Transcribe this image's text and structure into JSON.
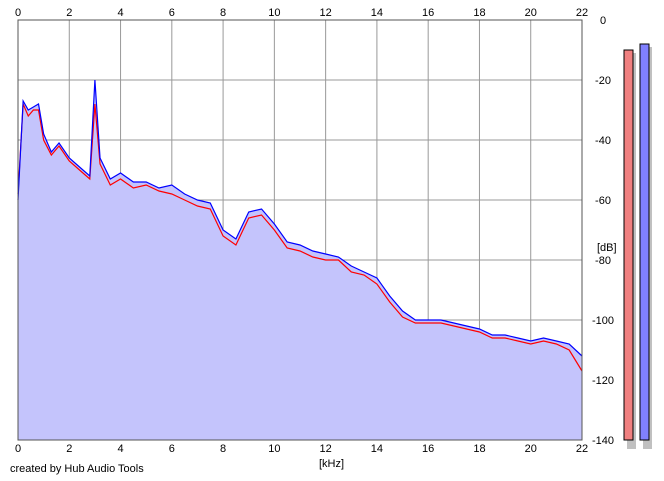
{
  "chart_data": {
    "type": "area",
    "xlabel": "[kHz]",
    "ylabel": "[dB]",
    "xlim": [
      0,
      22
    ],
    "ylim": [
      -140,
      0
    ],
    "x_ticks": [
      0,
      2,
      4,
      6,
      8,
      10,
      12,
      14,
      16,
      18,
      20,
      22
    ],
    "y_ticks": [
      0,
      -20,
      -40,
      -60,
      -80,
      -100,
      -120,
      -140
    ],
    "grid": true,
    "series": [
      {
        "color": "#ff0000",
        "x": [
          0,
          0.2,
          0.4,
          0.6,
          0.8,
          1.0,
          1.3,
          1.6,
          2.0,
          2.4,
          2.8,
          3.0,
          3.2,
          3.6,
          4.0,
          4.5,
          5.0,
          5.5,
          6.0,
          6.5,
          7.0,
          7.5,
          8.0,
          8.5,
          9.0,
          9.5,
          10.0,
          10.5,
          11.0,
          11.5,
          12.0,
          12.5,
          13.0,
          13.5,
          14.0,
          14.5,
          15.0,
          15.5,
          16.0,
          16.5,
          17.0,
          17.5,
          18.0,
          18.5,
          19.0,
          19.5,
          20.0,
          20.5,
          21.0,
          21.5,
          22.0
        ],
        "values": [
          -58,
          -28,
          -32,
          -30,
          -30,
          -40,
          -45,
          -42,
          -47,
          -50,
          -53,
          -28,
          -48,
          -55,
          -53,
          -56,
          -55,
          -57,
          -58,
          -60,
          -62,
          -63,
          -72,
          -75,
          -66,
          -65,
          -70,
          -76,
          -77,
          -79,
          -80,
          -80,
          -84,
          -85,
          -88,
          -94,
          -99,
          -101,
          -101,
          -101,
          -102,
          -103,
          -104,
          -106,
          -106,
          -107,
          -108,
          -107,
          -108,
          -110,
          -117
        ]
      },
      {
        "color": "#0000ff",
        "x": [
          0,
          0.2,
          0.4,
          0.6,
          0.8,
          1.0,
          1.3,
          1.6,
          2.0,
          2.4,
          2.8,
          3.0,
          3.2,
          3.6,
          4.0,
          4.5,
          5.0,
          5.5,
          6.0,
          6.5,
          7.0,
          7.5,
          8.0,
          8.5,
          9.0,
          9.5,
          10.0,
          10.5,
          11.0,
          11.5,
          12.0,
          12.5,
          13.0,
          13.5,
          14.0,
          14.5,
          15.0,
          15.5,
          16.0,
          16.5,
          17.0,
          17.5,
          18.0,
          18.5,
          19.0,
          19.5,
          20.0,
          20.5,
          21.0,
          21.5,
          22.0
        ],
        "values": [
          -60,
          -27,
          -30,
          -29,
          -28,
          -38,
          -44,
          -41,
          -46,
          -49,
          -52,
          -20,
          -46,
          -53,
          -51,
          -54,
          -54,
          -56,
          -55,
          -58,
          -60,
          -61,
          -70,
          -73,
          -64,
          -63,
          -68,
          -74,
          -75,
          -77,
          -78,
          -79,
          -82,
          -84,
          -86,
          -92,
          -97,
          -100,
          -100,
          -100,
          -101,
          -102,
          -103,
          -105,
          -105,
          -106,
          -107,
          -106,
          -107,
          -108,
          -112
        ]
      }
    ],
    "level_meters": [
      {
        "color": "#f08080",
        "level_db": -10
      },
      {
        "color": "#8080ff",
        "level_db": -8
      }
    ]
  },
  "footer": {
    "credit": "created by Hub Audio Tools"
  }
}
